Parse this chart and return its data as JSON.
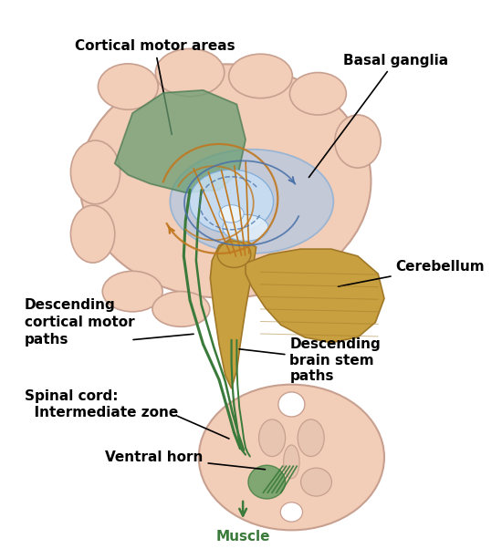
{
  "background_color": "#ffffff",
  "labels": {
    "cortical_motor_areas": "Cortical motor areas",
    "basal_ganglia": "Basal ganglia",
    "cerebellum": "Cerebellum",
    "descending_cortical": "Descending\ncortical motor\npaths",
    "descending_brainstem": "Descending\nbrain stem\npaths",
    "spinal_cord": "Spinal cord:\n  Intermediate zone",
    "ventral_horn": "Ventral horn",
    "muscle": "Muscle"
  },
  "colors": {
    "brain_fill": "#f2cdb8",
    "brain_edge": "#c8a090",
    "cortical_area_fill": "#6a9e72",
    "cortical_area_alpha": 0.75,
    "basal_ganglia_fill": "#aac8e8",
    "basal_ganglia_alpha": 0.65,
    "brainstem_fill": "#c8a040",
    "brainstem_edge": "#a07828",
    "cerebellum_fill": "#c8a040",
    "spinal_cord_fill": "#f2cdb8",
    "spinal_green": "#3a7a3a",
    "arrow_gold": "#c07820",
    "arrow_blue": "#4870a8",
    "text_color": "#000000",
    "label_fontsize": 11
  }
}
